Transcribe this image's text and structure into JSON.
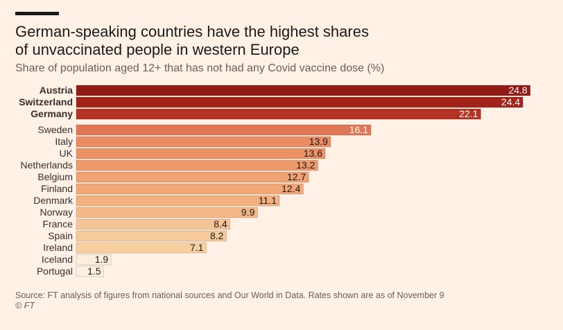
{
  "chart_data": {
    "type": "bar",
    "orientation": "horizontal",
    "title": "German-speaking countries have the highest shares of unvaccinated people in western Europe",
    "subtitle": "Share of population aged 12+ that has not had any Covid vaccine dose (%)",
    "categories": [
      "Austria",
      "Switzerland",
      "Germany",
      "Sweden",
      "Italy",
      "UK",
      "Netherlands",
      "Belgium",
      "Finland",
      "Denmark",
      "Norway",
      "France",
      "Spain",
      "Ireland",
      "Iceland",
      "Portugal"
    ],
    "values": [
      24.8,
      24.4,
      22.1,
      16.1,
      13.9,
      13.6,
      13.2,
      12.7,
      12.4,
      11.1,
      9.9,
      8.4,
      8.2,
      7.1,
      1.9,
      1.5
    ],
    "colors": [
      "#921a14",
      "#a3221a",
      "#b63222",
      "#e07858",
      "#ea8b61",
      "#ec9366",
      "#ee9a6b",
      "#f0a272",
      "#f1a876",
      "#f3b17f",
      "#f4b987",
      "#f6c597",
      "#f7ca9c",
      "#f8cfa1",
      "#fbeedc",
      "#fcf1e1"
    ],
    "xlim": [
      0,
      25
    ],
    "source": "Source: FT analysis of figures from national sources and Our World in Data. Rates shown are as of November 9",
    "credit": "© FT"
  }
}
